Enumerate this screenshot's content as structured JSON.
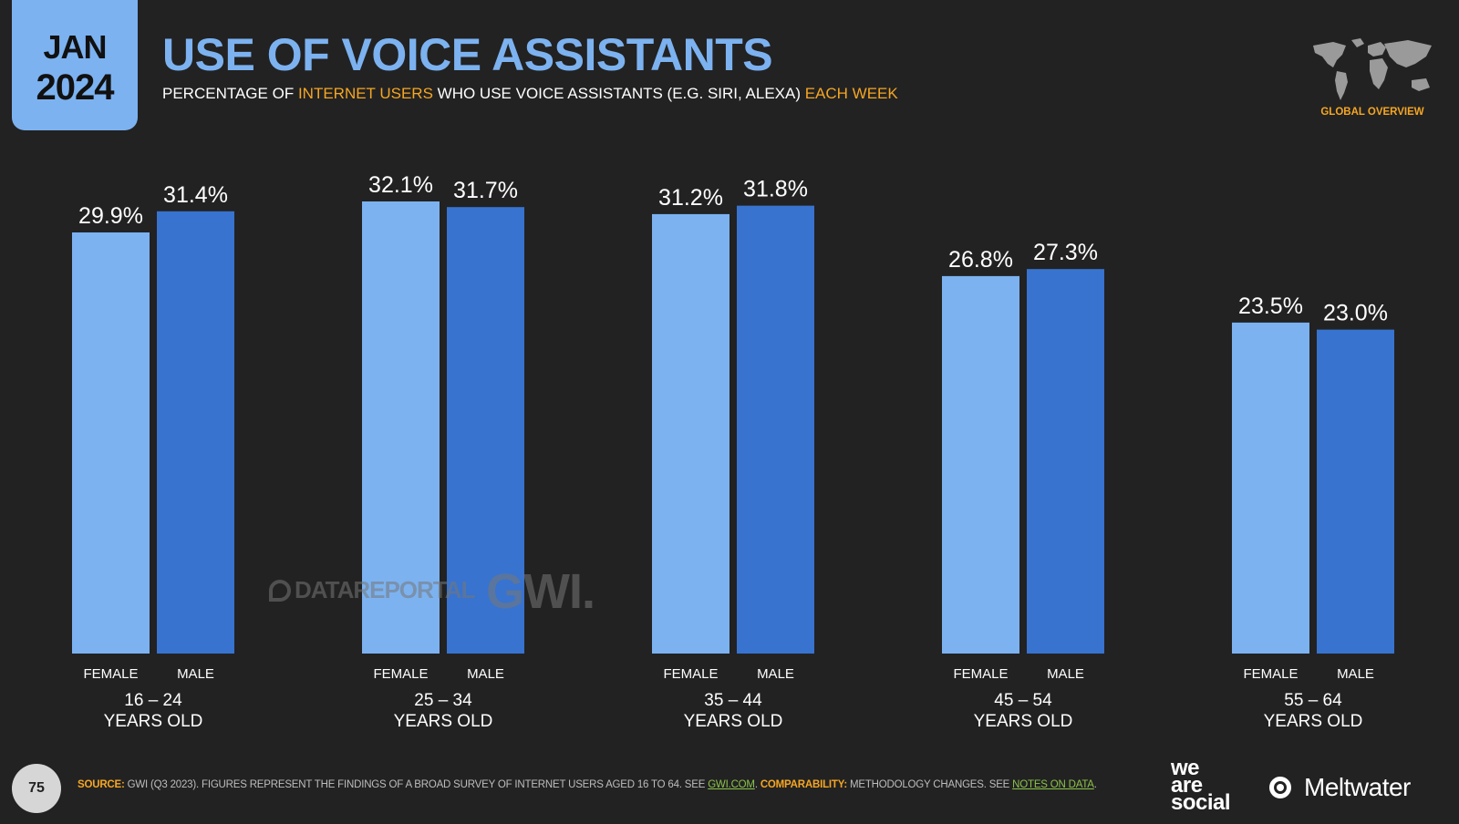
{
  "header": {
    "month": "JAN",
    "year": "2024",
    "title": "USE OF VOICE ASSISTANTS",
    "subtitle": {
      "p1": "PERCENTAGE OF ",
      "h1": "INTERNET USERS",
      "p2": " WHO USE VOICE ASSISTANTS (E.G. SIRI, ALEXA) ",
      "h2": "EACH WEEK"
    },
    "region": "GLOBAL OVERVIEW"
  },
  "chart_data": {
    "type": "bar",
    "title": "USE OF VOICE ASSISTANTS",
    "categories": [
      "16 – 24",
      "25 – 34",
      "35 – 44",
      "45 – 54",
      "55 – 64"
    ],
    "category_suffix": "YEARS OLD",
    "series": [
      {
        "name": "FEMALE",
        "values": [
          29.9,
          32.1,
          31.2,
          26.8,
          23.5
        ],
        "color": "#7cb2f0"
      },
      {
        "name": "MALE",
        "values": [
          31.4,
          31.7,
          31.8,
          27.3,
          23.0
        ],
        "color": "#3873cf"
      }
    ],
    "value_format": "%",
    "ylim": [
      0,
      32.1
    ],
    "grid": false,
    "legend": "none"
  },
  "watermarks": {
    "left": "DATAREPORTAL",
    "right": "GWI."
  },
  "footer": {
    "page_number": "75",
    "source_label": "SOURCE:",
    "source_text": " GWI (Q3 2023). FIGURES REPRESENT THE FINDINGS OF A BROAD SURVEY OF INTERNET USERS AGED 16 TO 64. SEE ",
    "source_link": "GWI.COM",
    "source_end": ". ",
    "comparability_label": "COMPARABILITY:",
    "comparability_text": " METHODOLOGY CHANGES. SEE ",
    "comparability_link": "NOTES ON DATA",
    "comparability_end": "."
  },
  "brands": {
    "we_are_social": [
      "we",
      "are",
      "social"
    ],
    "meltwater": "Meltwater"
  }
}
